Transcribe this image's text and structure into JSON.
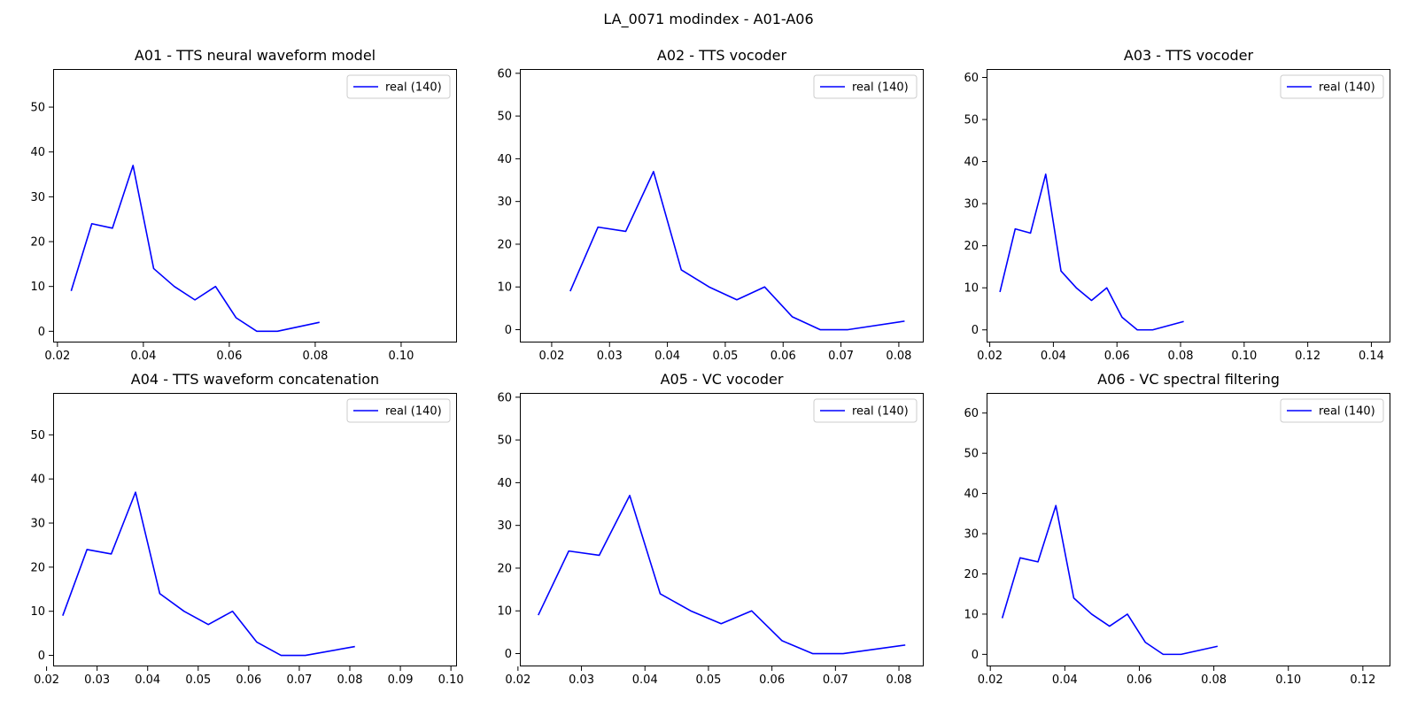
{
  "figure": {
    "title": "LA_0071 modindex - A01-A06"
  },
  "chart_data": [
    {
      "type": "line",
      "title": "A01 - TTS neural waveform model",
      "xlim": [
        0.019,
        0.113
      ],
      "ylim": [
        -2.5,
        58.5
      ],
      "xticks": [
        "0.02",
        "0.04",
        "0.06",
        "0.08",
        "0.10"
      ],
      "yticks": [
        "0",
        "10",
        "20",
        "30",
        "40",
        "50"
      ],
      "legend": "top-right",
      "series": [
        {
          "name": "real (140)",
          "color": "#0000ff",
          "x": [
            0.0232,
            0.028,
            0.0328,
            0.0376,
            0.0424,
            0.0472,
            0.052,
            0.0568,
            0.0616,
            0.0664,
            0.0712,
            0.081
          ],
          "y": [
            9,
            24,
            23,
            37,
            14,
            10,
            7,
            10,
            3,
            0,
            0,
            2
          ]
        }
      ]
    },
    {
      "type": "line",
      "title": "A02 - TTS vocoder",
      "xlim": [
        0.0145,
        0.0843
      ],
      "ylim": [
        -3,
        61
      ],
      "xticks": [
        "0.02",
        "0.03",
        "0.04",
        "0.05",
        "0.06",
        "0.07",
        "0.08"
      ],
      "yticks": [
        "0",
        "10",
        "20",
        "30",
        "40",
        "50",
        "60"
      ],
      "legend": "top-right",
      "series": [
        {
          "name": "real (140)",
          "color": "#0000ff",
          "x": [
            0.0232,
            0.028,
            0.0328,
            0.0376,
            0.0424,
            0.0472,
            0.052,
            0.0568,
            0.0616,
            0.0664,
            0.0712,
            0.081
          ],
          "y": [
            9,
            24,
            23,
            37,
            14,
            10,
            7,
            10,
            3,
            0,
            0,
            2
          ]
        }
      ]
    },
    {
      "type": "line",
      "title": "A03 - TTS vocoder",
      "xlim": [
        0.019,
        0.146
      ],
      "ylim": [
        -3,
        62
      ],
      "xticks": [
        "0.02",
        "0.04",
        "0.06",
        "0.08",
        "0.10",
        "0.12",
        "0.14"
      ],
      "yticks": [
        "0",
        "10",
        "20",
        "30",
        "40",
        "50",
        "60"
      ],
      "legend": "top-right",
      "series": [
        {
          "name": "real (140)",
          "color": "#0000ff",
          "x": [
            0.0232,
            0.028,
            0.0328,
            0.0376,
            0.0424,
            0.0472,
            0.052,
            0.0568,
            0.0616,
            0.0664,
            0.0712,
            0.081
          ],
          "y": [
            9,
            24,
            23,
            37,
            14,
            10,
            7,
            10,
            3,
            0,
            0,
            2
          ]
        }
      ]
    },
    {
      "type": "line",
      "title": "A04 - TTS waveform concatenation",
      "xlim": [
        0.0213,
        0.1012
      ],
      "ylim": [
        -2.5,
        59.5
      ],
      "xticks": [
        "0.02",
        "0.03",
        "0.04",
        "0.05",
        "0.06",
        "0.07",
        "0.08",
        "0.09",
        "0.10"
      ],
      "yticks": [
        "0",
        "10",
        "20",
        "30",
        "40",
        "50"
      ],
      "legend": "top-right",
      "series": [
        {
          "name": "real (140)",
          "color": "#0000ff",
          "x": [
            0.0232,
            0.028,
            0.0328,
            0.0376,
            0.0424,
            0.0472,
            0.052,
            0.0568,
            0.0616,
            0.0664,
            0.0712,
            0.081
          ],
          "y": [
            9,
            24,
            23,
            37,
            14,
            10,
            7,
            10,
            3,
            0,
            0,
            2
          ]
        }
      ]
    },
    {
      "type": "line",
      "title": "A05 - VC vocoder",
      "xlim": [
        0.0203,
        0.0839
      ],
      "ylim": [
        -3,
        61
      ],
      "xticks": [
        "0.02",
        "0.03",
        "0.04",
        "0.05",
        "0.06",
        "0.07",
        "0.08"
      ],
      "yticks": [
        "0",
        "10",
        "20",
        "30",
        "40",
        "50",
        "60"
      ],
      "legend": "top-right",
      "series": [
        {
          "name": "real (140)",
          "color": "#0000ff",
          "x": [
            0.0232,
            0.028,
            0.0328,
            0.0376,
            0.0424,
            0.0472,
            0.052,
            0.0568,
            0.0616,
            0.0664,
            0.0712,
            0.081
          ],
          "y": [
            9,
            24,
            23,
            37,
            14,
            10,
            7,
            10,
            3,
            0,
            0,
            2
          ]
        }
      ]
    },
    {
      "type": "line",
      "title": "A06 - VC spectral filtering",
      "xlim": [
        0.019,
        0.1274
      ],
      "ylim": [
        -3,
        65
      ],
      "xticks": [
        "0.02",
        "0.04",
        "0.06",
        "0.08",
        "0.10",
        "0.12"
      ],
      "yticks": [
        "0",
        "10",
        "20",
        "30",
        "40",
        "50",
        "60"
      ],
      "legend": "top-right",
      "series": [
        {
          "name": "real (140)",
          "color": "#0000ff",
          "x": [
            0.0232,
            0.028,
            0.0328,
            0.0376,
            0.0424,
            0.0472,
            0.052,
            0.0568,
            0.0616,
            0.0664,
            0.0712,
            0.081
          ],
          "y": [
            9,
            24,
            23,
            37,
            14,
            10,
            7,
            10,
            3,
            0,
            0,
            2
          ]
        }
      ]
    }
  ]
}
